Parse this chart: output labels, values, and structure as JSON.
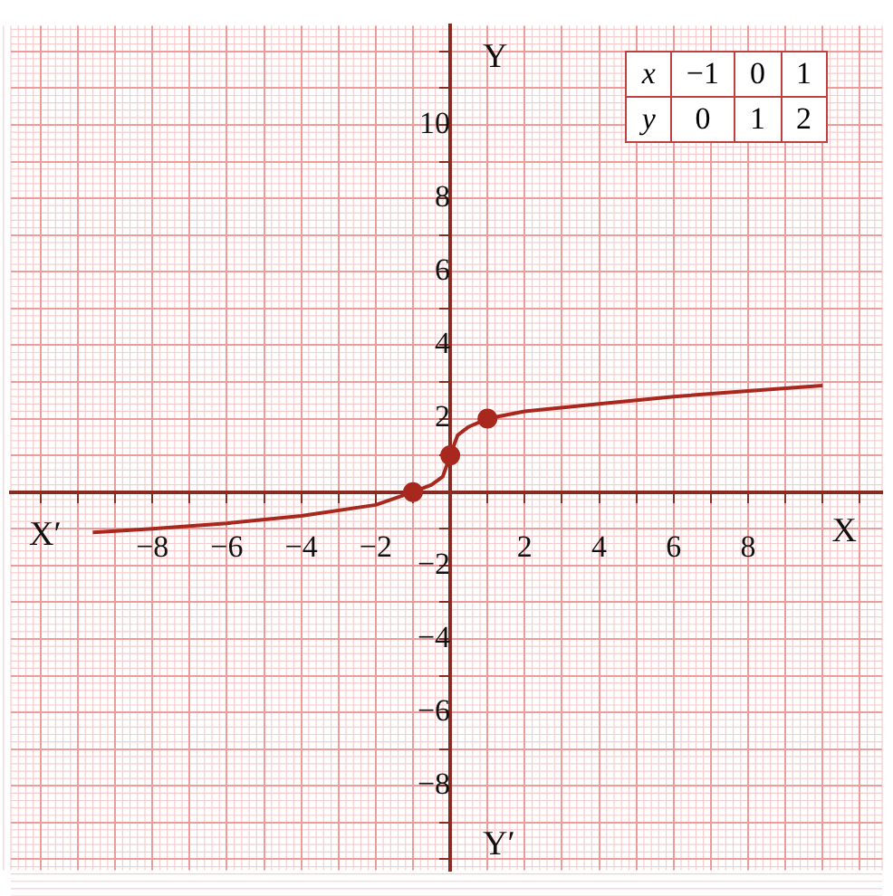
{
  "chart_data": {
    "type": "line",
    "xlabel": "X",
    "ylabel": "Y",
    "annotations": [
      "X′",
      "Y′",
      "x",
      "−1",
      "0",
      "1",
      "y",
      "0",
      "1",
      "2"
    ],
    "xlim": [
      -11.8,
      11.6
    ],
    "ylim": [
      -10.3,
      12.7
    ],
    "xticks": [
      {
        "value": -11,
        "label": null
      },
      {
        "value": -10,
        "label": null
      },
      {
        "value": -9,
        "label": null
      },
      -8,
      {
        "value": -7,
        "label": null
      },
      -6,
      {
        "value": -5,
        "label": null
      },
      -4,
      {
        "value": -3,
        "label": null
      },
      -2,
      {
        "value": -1,
        "label": null
      },
      {
        "value": 0,
        "label": null
      },
      {
        "value": 1,
        "label": null
      },
      2,
      {
        "value": 3,
        "label": null
      },
      4,
      {
        "value": 5,
        "label": null
      },
      6,
      {
        "value": 7,
        "label": null
      },
      8,
      {
        "value": 9,
        "label": null
      },
      {
        "value": 10,
        "label": null
      },
      {
        "value": 11,
        "label": null
      }
    ],
    "yticks": [
      {
        "value": -10,
        "label": null
      },
      {
        "value": -9,
        "label": null
      },
      -8,
      {
        "value": -7,
        "label": null
      },
      -6,
      {
        "value": -5,
        "label": null
      },
      -4,
      {
        "value": -3,
        "label": null
      },
      -2,
      {
        "value": -1,
        "label": null
      },
      {
        "value": 0,
        "label": null
      },
      {
        "value": 1,
        "label": null
      },
      2,
      {
        "value": 3,
        "label": null
      },
      4,
      {
        "value": 5,
        "label": null
      },
      6,
      {
        "value": 7,
        "label": null
      },
      8,
      {
        "value": 9,
        "label": null
      },
      10,
      {
        "value": 11,
        "label": null
      },
      {
        "value": 12,
        "label": null
      }
    ],
    "grid": true,
    "legend": false,
    "series": [
      {
        "color": "#a8281e",
        "marker": "none",
        "x": [
          -9.6,
          -8,
          -6,
          -4,
          -2,
          -1,
          -0.5,
          -0.2,
          0,
          0.2,
          0.5,
          1,
          2,
          4,
          6,
          8,
          10
        ],
        "values": [
          -1.1,
          -1.0,
          -0.85,
          -0.65,
          -0.35,
          0,
          0.2,
          0.42,
          1,
          1.55,
          1.78,
          2,
          2.2,
          2.4,
          2.6,
          2.75,
          2.9
        ]
      },
      {
        "type": "scatter",
        "color": "#a8281e",
        "marker": "circle",
        "x": [
          -1,
          0,
          1
        ],
        "values": [
          0,
          1,
          2
        ]
      }
    ]
  }
}
